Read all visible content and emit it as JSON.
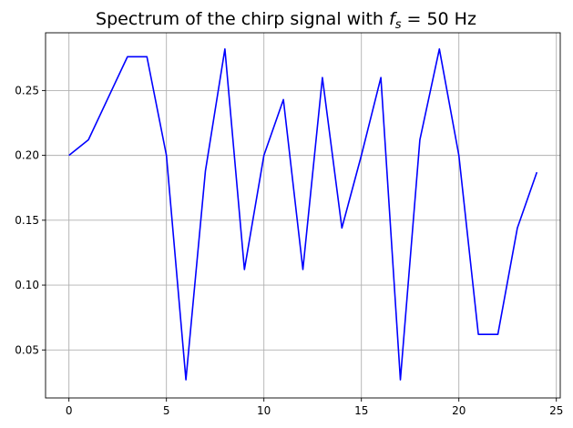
{
  "chart_data": {
    "type": "line",
    "title": "Spectrum of the chirp signal with f_s = 50 Hz",
    "title_parts": {
      "prefix": "Spectrum of the chirp signal with ",
      "symbol": "f",
      "subscript": "s",
      "suffix": " = 50 Hz"
    },
    "xlabel": "",
    "ylabel": "",
    "xlim": [
      -1.2,
      25.2
    ],
    "ylim": [
      0.013,
      0.2945
    ],
    "xticks": [
      0,
      5,
      10,
      15,
      20,
      25
    ],
    "yticks": [
      0.05,
      0.1,
      0.15,
      0.2,
      0.25
    ],
    "xtick_labels": [
      "0",
      "5",
      "10",
      "15",
      "20",
      "25"
    ],
    "ytick_labels": [
      "0.05",
      "0.10",
      "0.15",
      "0.20",
      "0.25"
    ],
    "grid": true,
    "series": [
      {
        "color": "#0000ff",
        "x": [
          0,
          1,
          2,
          3,
          4,
          5,
          6,
          7,
          8,
          9,
          10,
          11,
          12,
          13,
          14,
          15,
          16,
          17,
          18,
          19,
          20,
          21,
          22,
          23,
          24
        ],
        "y": [
          0.2,
          0.212,
          0.244,
          0.276,
          0.276,
          0.2,
          0.027,
          0.188,
          0.282,
          0.112,
          0.2,
          0.243,
          0.112,
          0.26,
          0.144,
          0.2,
          0.26,
          0.027,
          0.212,
          0.282,
          0.2,
          0.062,
          0.062,
          0.144,
          0.187
        ]
      }
    ]
  }
}
